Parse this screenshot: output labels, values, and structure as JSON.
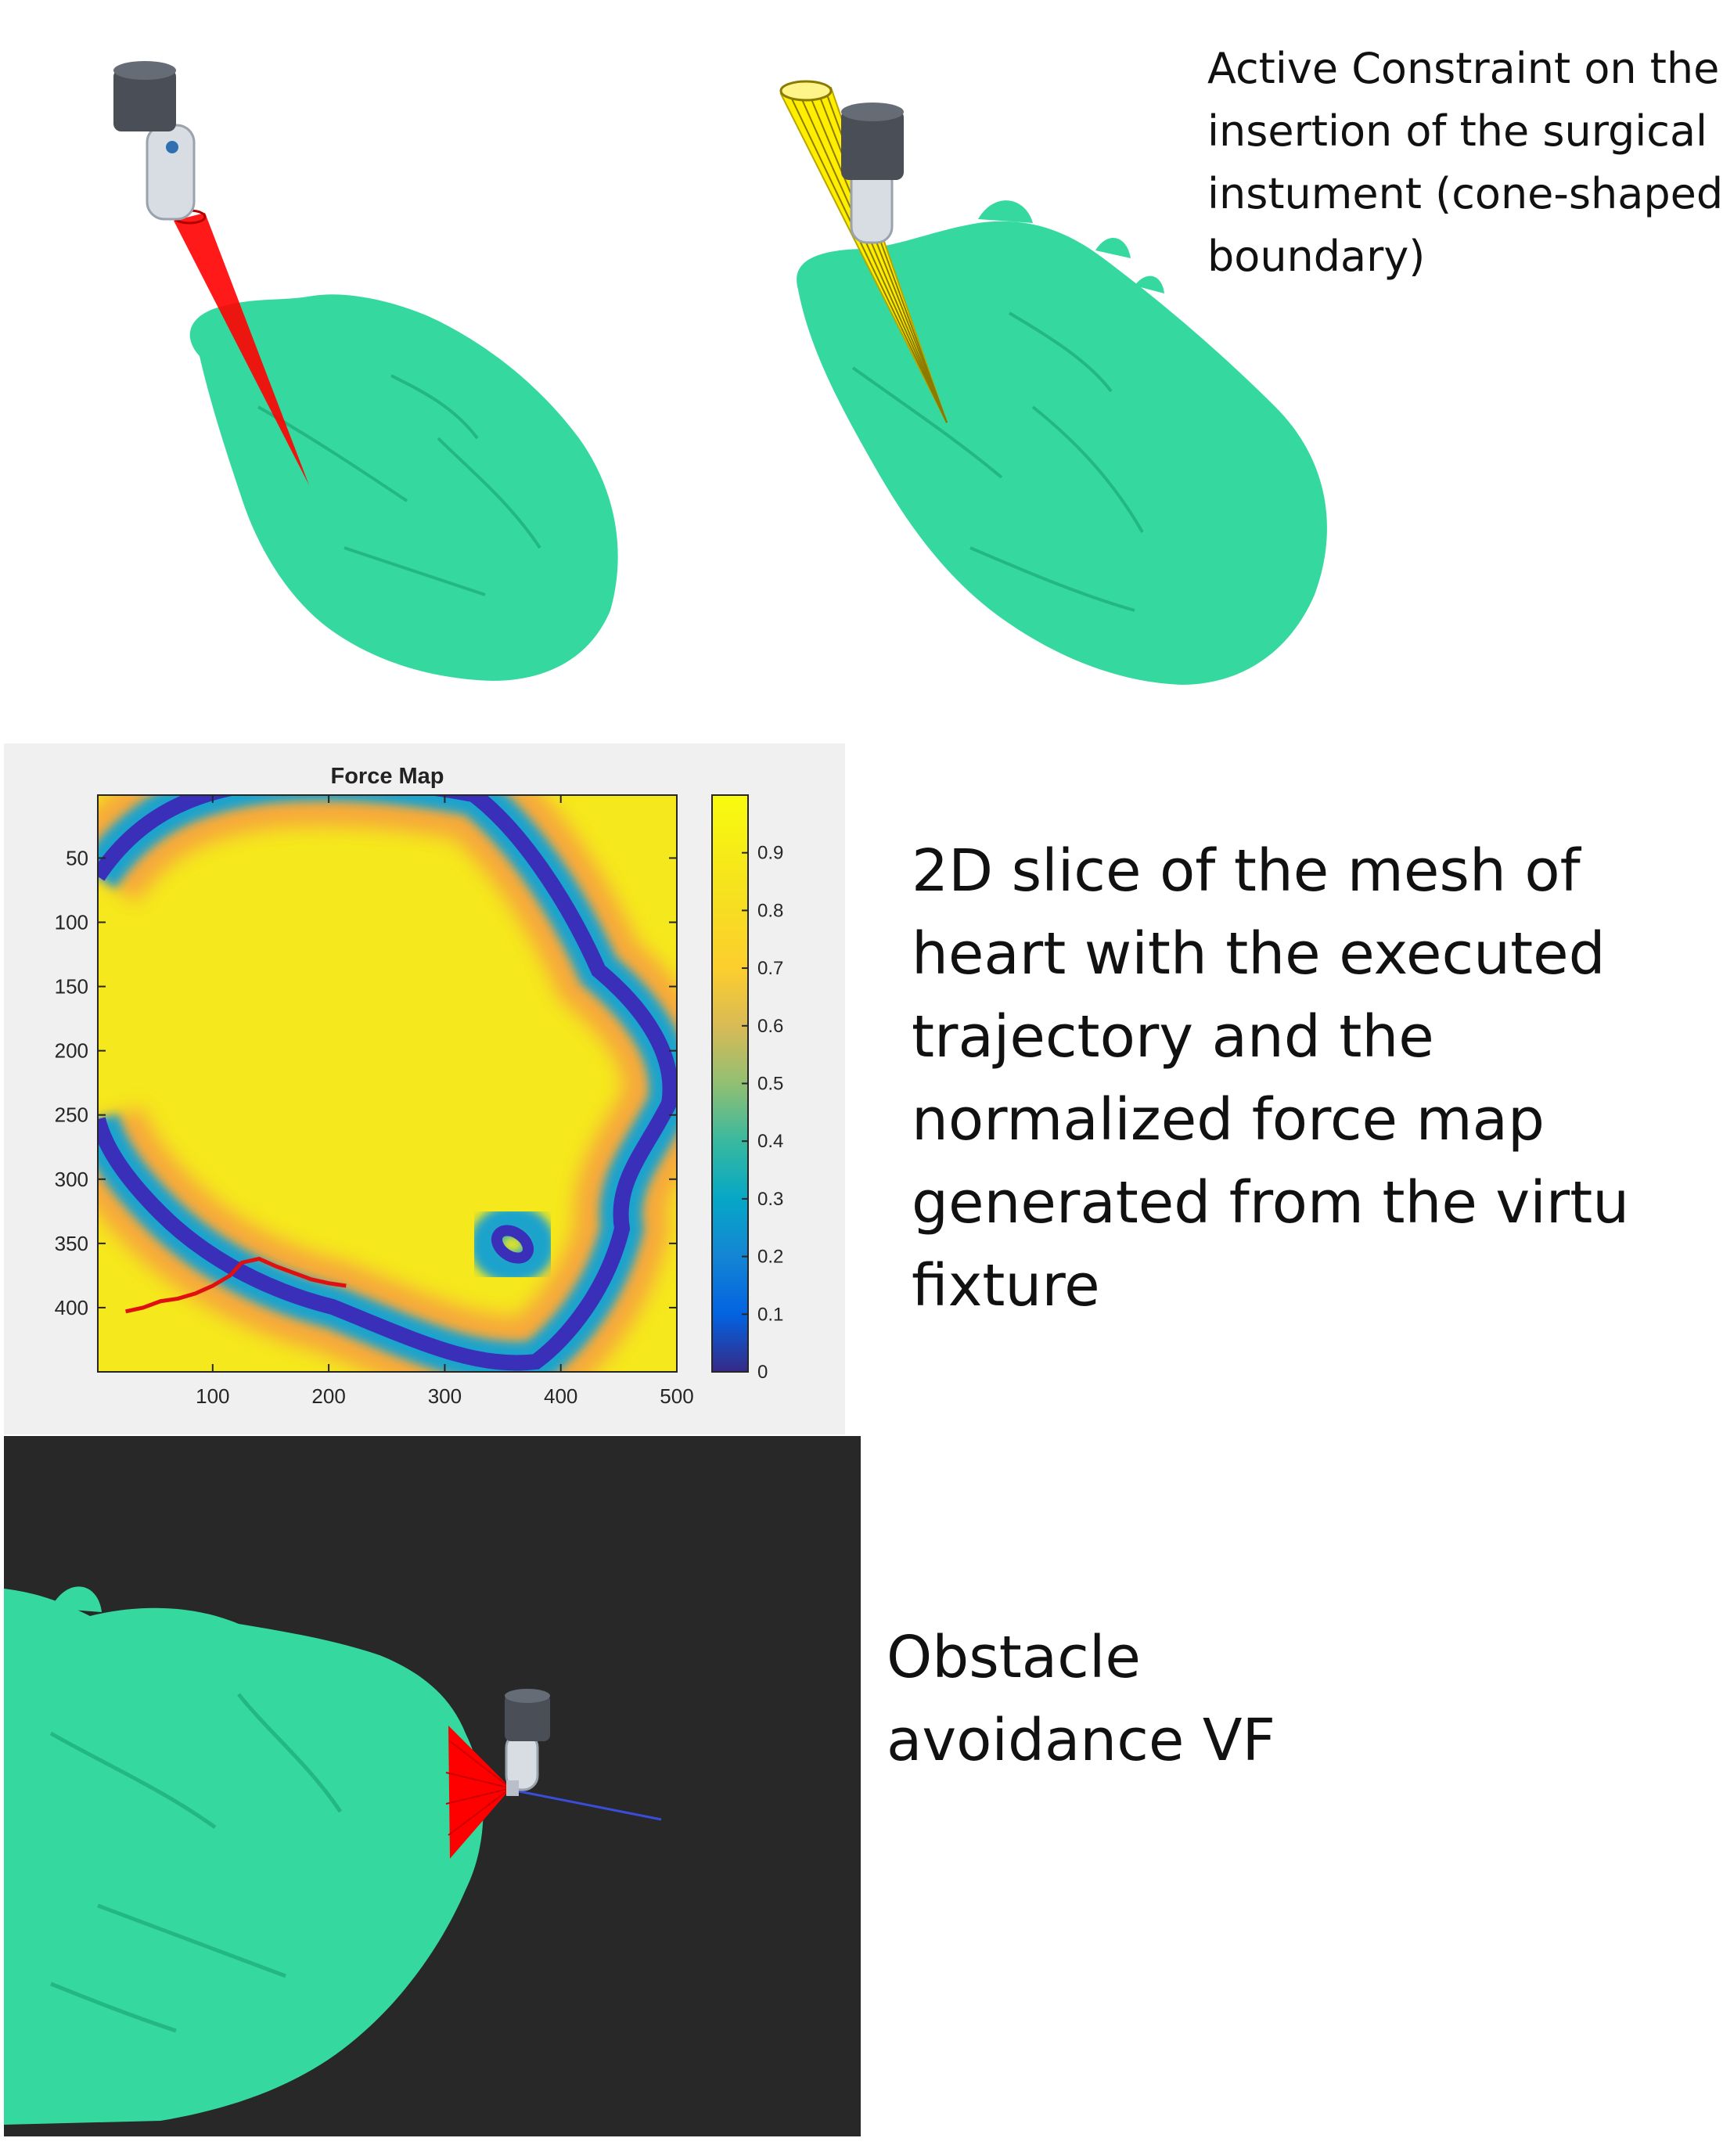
{
  "captions": {
    "active_constraint": [
      "Active Constraint on the",
      "insertion of the surgical",
      "instument (cone-shaped",
      "boundary)"
    ],
    "force_map": [
      "2D slice of the mesh of",
      "heart with the executed",
      "trajectory and the",
      "normalized force map",
      "generated from the virtu",
      "fixture"
    ],
    "obstacle": [
      "Obstacle",
      "avoidance VF"
    ]
  },
  "colors": {
    "heart_mesh": "#35d9a0",
    "red_cone": "#ff0000",
    "yellow_cone": "#ffee00",
    "trajectory": "#e01010",
    "dark_background": "#282828",
    "direction_line": "#3a4dd8"
  },
  "chart_data": {
    "type": "heatmap",
    "title": "Force Map",
    "xlim": [
      1,
      500
    ],
    "ylim": [
      1,
      450
    ],
    "x_ticks": [
      100,
      200,
      300,
      400,
      500
    ],
    "y_ticks": [
      50,
      100,
      150,
      200,
      250,
      300,
      350,
      400
    ],
    "colorbar": {
      "range": [
        0,
        1
      ],
      "ticks": [
        "0",
        "0.1",
        "0.2",
        "0.3",
        "0.4",
        "0.5",
        "0.6",
        "0.7",
        "0.8",
        "0.9"
      ],
      "colormap": "parula"
    },
    "trajectory": {
      "x": [
        25,
        40,
        55,
        70,
        85,
        100,
        115,
        125,
        140,
        155,
        170,
        185,
        200,
        215
      ],
      "y": [
        403,
        400,
        395,
        393,
        389,
        383,
        375,
        365,
        362,
        368,
        373,
        378,
        381,
        383
      ]
    }
  }
}
